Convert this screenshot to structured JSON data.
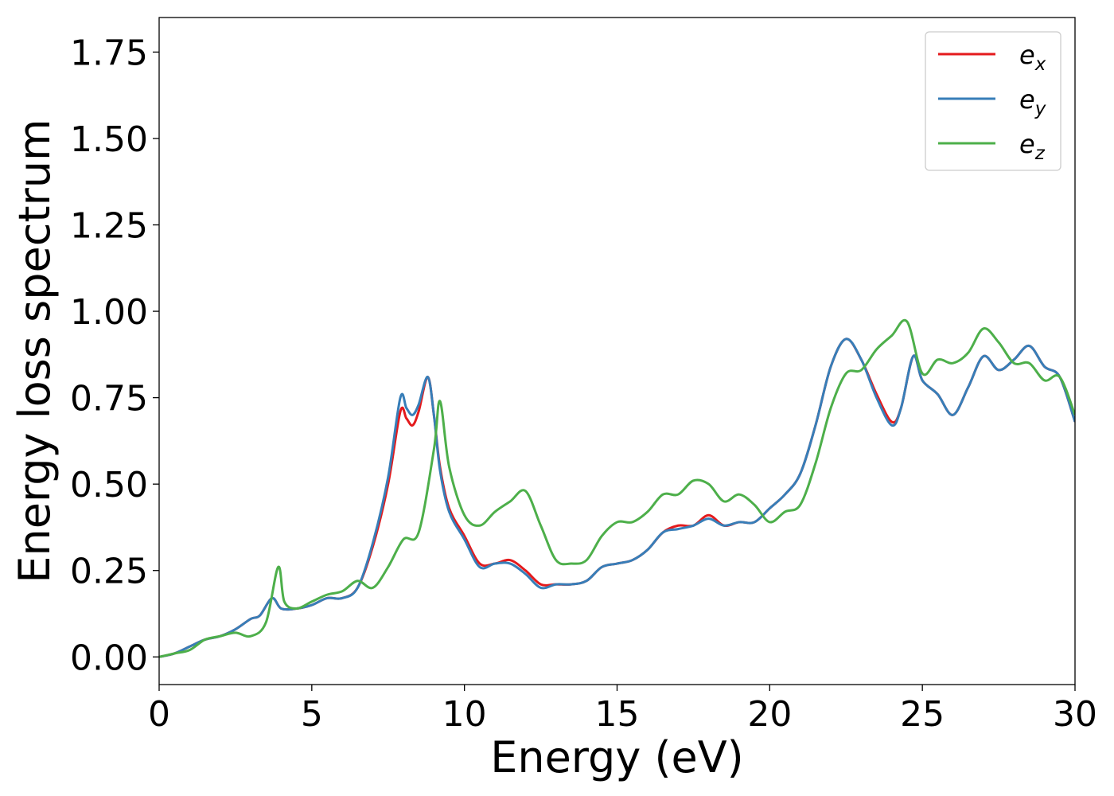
{
  "chart_data": {
    "type": "line",
    "title": "",
    "xlabel": "Energy (eV)",
    "ylabel": "Energy loss spectrum",
    "xlim": [
      0,
      30
    ],
    "ylim": [
      -0.08,
      1.85
    ],
    "xticks": [
      0,
      5,
      10,
      15,
      20,
      25,
      30
    ],
    "xtick_labels": [
      "0",
      "5",
      "10",
      "15",
      "20",
      "25",
      "30"
    ],
    "yticks": [
      0.0,
      0.25,
      0.5,
      0.75,
      1.0,
      1.25,
      1.5,
      1.75
    ],
    "ytick_labels": [
      "0.00",
      "0.25",
      "0.50",
      "0.75",
      "1.00",
      "1.25",
      "1.50",
      "1.75"
    ],
    "grid": false,
    "legend_position": "top-right",
    "series": [
      {
        "name": "e_x",
        "legend_base": "e",
        "legend_sub": "x",
        "color": "#e41a1c",
        "x": [
          0,
          0.5,
          1,
          1.5,
          2,
          2.5,
          3,
          3.3,
          3.7,
          4,
          4.5,
          5,
          5.5,
          6,
          6.5,
          7,
          7.5,
          7.9,
          8.1,
          8.3,
          8.5,
          8.8,
          9,
          9.2,
          9.5,
          10,
          10.5,
          11,
          11.5,
          12,
          12.5,
          13,
          13.5,
          14,
          14.5,
          15,
          15.5,
          16,
          16.5,
          17,
          17.5,
          18,
          18.5,
          19,
          19.5,
          20,
          20.5,
          21,
          21.5,
          22,
          22.5,
          23,
          23.5,
          24,
          24.3,
          24.7,
          25,
          25.5,
          26,
          26.5,
          27,
          27.5,
          28,
          28.5,
          29,
          29.5,
          30
        ],
        "y": [
          0.0,
          0.01,
          0.03,
          0.05,
          0.06,
          0.08,
          0.11,
          0.12,
          0.17,
          0.14,
          0.14,
          0.15,
          0.17,
          0.17,
          0.2,
          0.32,
          0.5,
          0.71,
          0.69,
          0.67,
          0.71,
          0.81,
          0.7,
          0.55,
          0.43,
          0.35,
          0.27,
          0.27,
          0.28,
          0.25,
          0.21,
          0.21,
          0.21,
          0.22,
          0.26,
          0.27,
          0.28,
          0.31,
          0.36,
          0.38,
          0.38,
          0.41,
          0.38,
          0.39,
          0.39,
          0.43,
          0.47,
          0.53,
          0.67,
          0.84,
          0.92,
          0.86,
          0.76,
          0.68,
          0.72,
          0.87,
          0.8,
          0.76,
          0.7,
          0.78,
          0.87,
          0.83,
          0.86,
          0.9,
          0.84,
          0.81,
          0.68
        ]
      },
      {
        "name": "e_y",
        "legend_base": "e",
        "legend_sub": "y",
        "color": "#377eb8",
        "x": [
          0,
          0.5,
          1,
          1.5,
          2,
          2.5,
          3,
          3.3,
          3.7,
          4,
          4.5,
          5,
          5.5,
          6,
          6.5,
          7,
          7.5,
          7.9,
          8.1,
          8.3,
          8.5,
          8.8,
          9,
          9.2,
          9.5,
          10,
          10.5,
          11,
          11.5,
          12,
          12.5,
          13,
          13.5,
          14,
          14.5,
          15,
          15.5,
          16,
          16.5,
          17,
          17.5,
          18,
          18.5,
          19,
          19.5,
          20,
          20.5,
          21,
          21.5,
          22,
          22.5,
          23,
          23.5,
          24,
          24.3,
          24.7,
          25,
          25.5,
          26,
          26.5,
          27,
          27.5,
          28,
          28.5,
          29,
          29.5,
          30
        ],
        "y": [
          0.0,
          0.01,
          0.03,
          0.05,
          0.06,
          0.08,
          0.11,
          0.12,
          0.17,
          0.14,
          0.14,
          0.15,
          0.17,
          0.17,
          0.2,
          0.33,
          0.52,
          0.75,
          0.72,
          0.7,
          0.73,
          0.81,
          0.7,
          0.54,
          0.42,
          0.34,
          0.26,
          0.27,
          0.27,
          0.24,
          0.2,
          0.21,
          0.21,
          0.22,
          0.26,
          0.27,
          0.28,
          0.31,
          0.36,
          0.37,
          0.38,
          0.4,
          0.38,
          0.39,
          0.39,
          0.43,
          0.47,
          0.53,
          0.67,
          0.84,
          0.92,
          0.86,
          0.75,
          0.67,
          0.72,
          0.87,
          0.8,
          0.76,
          0.7,
          0.78,
          0.87,
          0.83,
          0.86,
          0.9,
          0.84,
          0.81,
          0.68
        ]
      },
      {
        "name": "e_z",
        "legend_base": "e",
        "legend_sub": "z",
        "color": "#4daf4a",
        "x": [
          0,
          0.5,
          1,
          1.5,
          2,
          2.5,
          3,
          3.5,
          3.9,
          4.1,
          4.5,
          5,
          5.5,
          6,
          6.5,
          7,
          7.5,
          8,
          8.5,
          9,
          9.2,
          9.5,
          10,
          10.5,
          11,
          11.5,
          12,
          12.5,
          13,
          13.5,
          14,
          14.5,
          15,
          15.5,
          16,
          16.5,
          17,
          17.5,
          18,
          18.5,
          19,
          19.5,
          20,
          20.5,
          21,
          21.5,
          22,
          22.5,
          23,
          23.5,
          24,
          24.5,
          25,
          25.5,
          26,
          26.5,
          27,
          27.5,
          28,
          28.5,
          29,
          29.5,
          30
        ],
        "y": [
          0.0,
          0.01,
          0.02,
          0.05,
          0.06,
          0.07,
          0.06,
          0.1,
          0.26,
          0.16,
          0.14,
          0.16,
          0.18,
          0.19,
          0.22,
          0.2,
          0.26,
          0.34,
          0.36,
          0.6,
          0.74,
          0.55,
          0.41,
          0.38,
          0.42,
          0.45,
          0.48,
          0.38,
          0.28,
          0.27,
          0.28,
          0.35,
          0.39,
          0.39,
          0.42,
          0.47,
          0.47,
          0.51,
          0.5,
          0.45,
          0.47,
          0.44,
          0.39,
          0.42,
          0.44,
          0.56,
          0.72,
          0.82,
          0.83,
          0.89,
          0.93,
          0.97,
          0.82,
          0.86,
          0.85,
          0.88,
          0.95,
          0.91,
          0.85,
          0.85,
          0.8,
          0.81,
          0.7
        ]
      }
    ]
  }
}
